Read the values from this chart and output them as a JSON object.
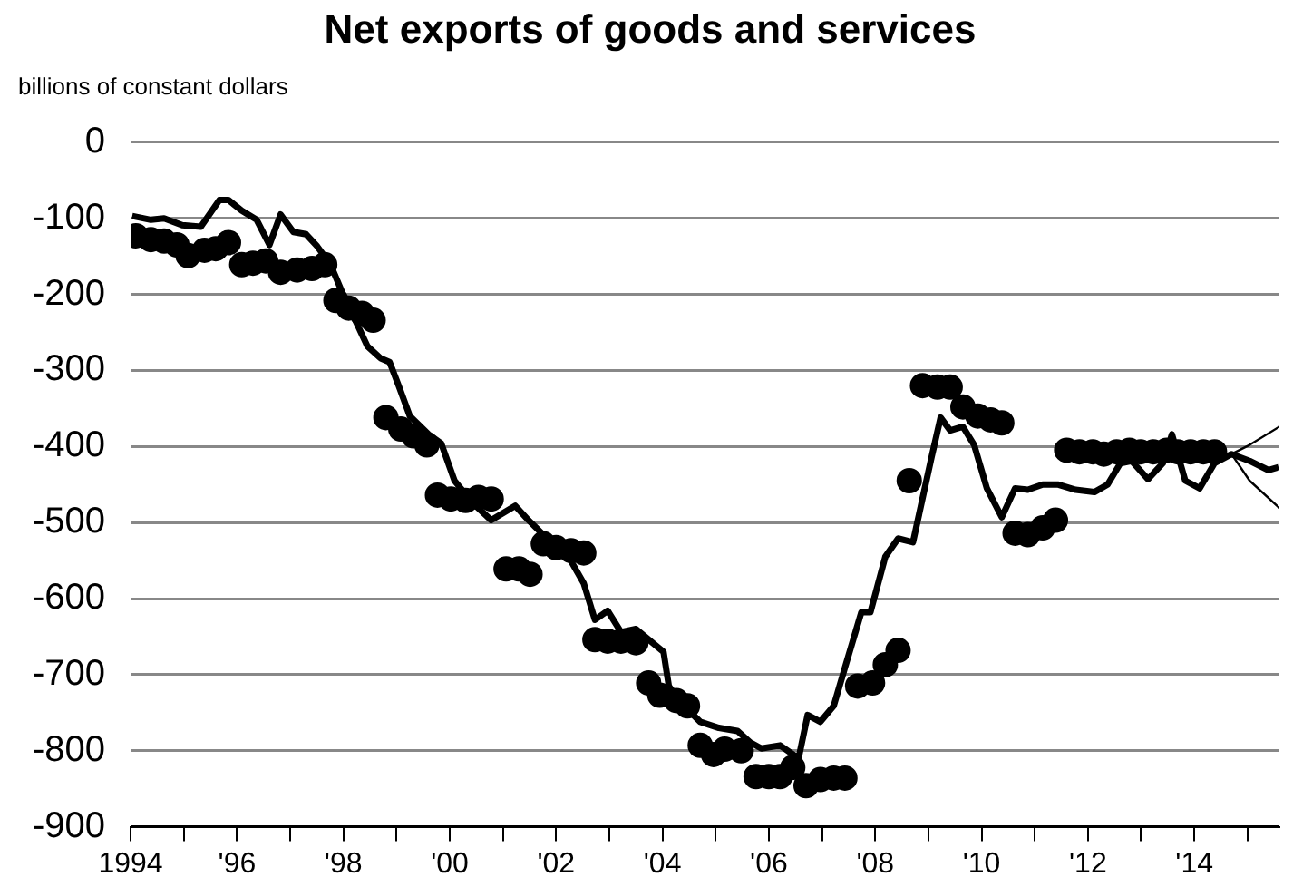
{
  "chart_data": {
    "type": "line",
    "title": "Net exports of goods and services",
    "ylabel": "billions of constant dollars",
    "xlim": [
      1994,
      2015.6
    ],
    "xticks": [
      {
        "value": 1994,
        "label": "1994"
      },
      {
        "value": 1995,
        "label": null
      },
      {
        "value": 1996,
        "label": "'96"
      },
      {
        "value": 1997,
        "label": null
      },
      {
        "value": 1998,
        "label": "'98"
      },
      {
        "value": 1999,
        "label": null
      },
      {
        "value": 2000,
        "label": "'00"
      },
      {
        "value": 2001,
        "label": null
      },
      {
        "value": 2002,
        "label": "'02"
      },
      {
        "value": 2003,
        "label": null
      },
      {
        "value": 2004,
        "label": "'04"
      },
      {
        "value": 2005,
        "label": null
      },
      {
        "value": 2006,
        "label": "'06"
      },
      {
        "value": 2007,
        "label": null
      },
      {
        "value": 2008,
        "label": "'08"
      },
      {
        "value": 2009,
        "label": null
      },
      {
        "value": 2010,
        "label": "'10"
      },
      {
        "value": 2011,
        "label": null
      },
      {
        "value": 2012,
        "label": "'12"
      },
      {
        "value": 2013,
        "label": null
      },
      {
        "value": 2014,
        "label": "'14"
      },
      {
        "value": 2015,
        "label": null
      }
    ],
    "ylim": [
      -900,
      0
    ],
    "yticks": [
      -900,
      -800,
      -700,
      -600,
      -500,
      -400,
      -300,
      -200,
      -100,
      0
    ],
    "grid": "y",
    "legend": false,
    "series": [
      {
        "type": "scatter",
        "marker": "circle",
        "color": "#000000",
        "x": [
          1994.1,
          1994.38,
          1994.63,
          1994.87,
          1995.08,
          1995.39,
          1995.6,
          1995.84,
          1996.09,
          1996.3,
          1996.54,
          1996.82,
          1997.13,
          1997.41,
          1997.65,
          1997.86,
          1998.1,
          1998.35,
          1998.56,
          1998.8,
          1999.08,
          1999.32,
          1999.57,
          1999.77,
          2000.02,
          2000.3,
          2000.54,
          2000.78,
          2001.06,
          2001.3,
          2001.51,
          2001.76,
          2002.0,
          2002.28,
          2002.52,
          2002.73,
          2002.97,
          2003.22,
          2003.5,
          2003.74,
          2003.95,
          2004.26,
          2004.47,
          2004.71,
          2004.96,
          2005.17,
          2005.48,
          2005.76,
          2006.0,
          2006.21,
          2006.45,
          2006.7,
          2006.97,
          2007.22,
          2007.43,
          2007.67,
          2007.95,
          2008.19,
          2008.43,
          2008.64,
          2008.89,
          2009.17,
          2009.41,
          2009.65,
          2009.93,
          2010.17,
          2010.38,
          2010.63,
          2010.87,
          2011.15,
          2011.39,
          2011.6,
          2011.84,
          2012.09,
          2012.3,
          2012.54,
          2012.78,
          2012.99,
          2013.23,
          2013.48,
          2013.69,
          2013.93,
          2014.17,
          2014.38
        ],
        "values": [
          -123,
          -128,
          -130,
          -135,
          -149,
          -142,
          -140,
          -132,
          -161,
          -159,
          -156,
          -171,
          -168,
          -166,
          -161,
          -208,
          -218,
          -225,
          -234,
          -362,
          -377,
          -386,
          -398,
          -464,
          -469,
          -471,
          -467,
          -469,
          -561,
          -561,
          -568,
          -528,
          -533,
          -537,
          -540,
          -654,
          -656,
          -656,
          -658,
          -711,
          -727,
          -734,
          -741,
          -793,
          -805,
          -798,
          -800,
          -834,
          -834,
          -834,
          -822,
          -846,
          -838,
          -836,
          -836,
          -715,
          -711,
          -687,
          -668,
          -445,
          -320,
          -322,
          -322,
          -348,
          -360,
          -365,
          -369,
          -514,
          -516,
          -507,
          -497,
          -405,
          -407,
          -407,
          -410,
          -407,
          -405,
          -407,
          -407,
          -405,
          -407,
          -407,
          -407,
          -407
        ]
      },
      {
        "marker": "none",
        "line_style": "solid",
        "color": "#000000",
        "x": [
          1994.03,
          1994.38,
          1994.63,
          1994.97,
          1995.32,
          1995.67,
          1995.84,
          1996.09,
          1996.37,
          1996.61,
          1996.82,
          1997.06,
          1997.3,
          1997.51,
          1997.76,
          1998.0,
          1998.21,
          1998.45,
          1998.7,
          1998.87,
          1999.04,
          1999.25,
          1999.6,
          1999.84,
          2000.09,
          2000.43,
          2000.78,
          2001.23,
          2001.48,
          2001.83,
          2002.17,
          2002.52,
          2002.73,
          2002.97,
          2003.22,
          2003.5,
          2004.02,
          2004.12,
          2004.37,
          2004.71,
          2005.06,
          2005.41,
          2005.65,
          2005.86,
          2006.21,
          2006.56,
          2006.73,
          2006.97,
          2007.22,
          2007.43,
          2007.74,
          2007.91,
          2008.19,
          2008.43,
          2008.71,
          2009.06,
          2009.23,
          2009.41,
          2009.65,
          2009.86,
          2010.1,
          2010.38,
          2010.63,
          2010.87,
          2011.15,
          2011.43,
          2011.77,
          2012.12,
          2012.37,
          2012.61,
          2012.82,
          2013.13,
          2013.41,
          2013.58,
          2013.83,
          2014.1,
          2014.38,
          2014.7,
          2015.04,
          2015.39,
          2015.6
        ],
        "values": [
          -97,
          -102,
          -100,
          -109,
          -111,
          -76,
          -76,
          -90,
          -102,
          -135,
          -95,
          -118,
          -121,
          -137,
          -161,
          -201,
          -232,
          -268,
          -284,
          -289,
          -320,
          -360,
          -384,
          -396,
          -445,
          -474,
          -497,
          -478,
          -497,
          -521,
          -537,
          -580,
          -628,
          -616,
          -644,
          -640,
          -670,
          -715,
          -739,
          -762,
          -770,
          -774,
          -789,
          -797,
          -793,
          -810,
          -753,
          -762,
          -741,
          -691,
          -618,
          -618,
          -545,
          -521,
          -526,
          -414,
          -362,
          -379,
          -374,
          -398,
          -455,
          -493,
          -455,
          -457,
          -450,
          -450,
          -457,
          -460,
          -450,
          -422,
          -419,
          -443,
          -422,
          -384,
          -445,
          -455,
          -422,
          -410,
          -419,
          -431,
          -427
        ]
      },
      {
        "marker": "none",
        "line_style": "solid",
        "color": "#000000",
        "x": [
          2014.7,
          2015.04,
          2015.6
        ],
        "values": [
          -410,
          -398,
          -374
        ]
      },
      {
        "marker": "none",
        "line_style": "solid",
        "color": "#000000",
        "x": [
          2014.7,
          2015.04,
          2015.6
        ],
        "values": [
          -410,
          -445,
          -481
        ]
      }
    ]
  }
}
